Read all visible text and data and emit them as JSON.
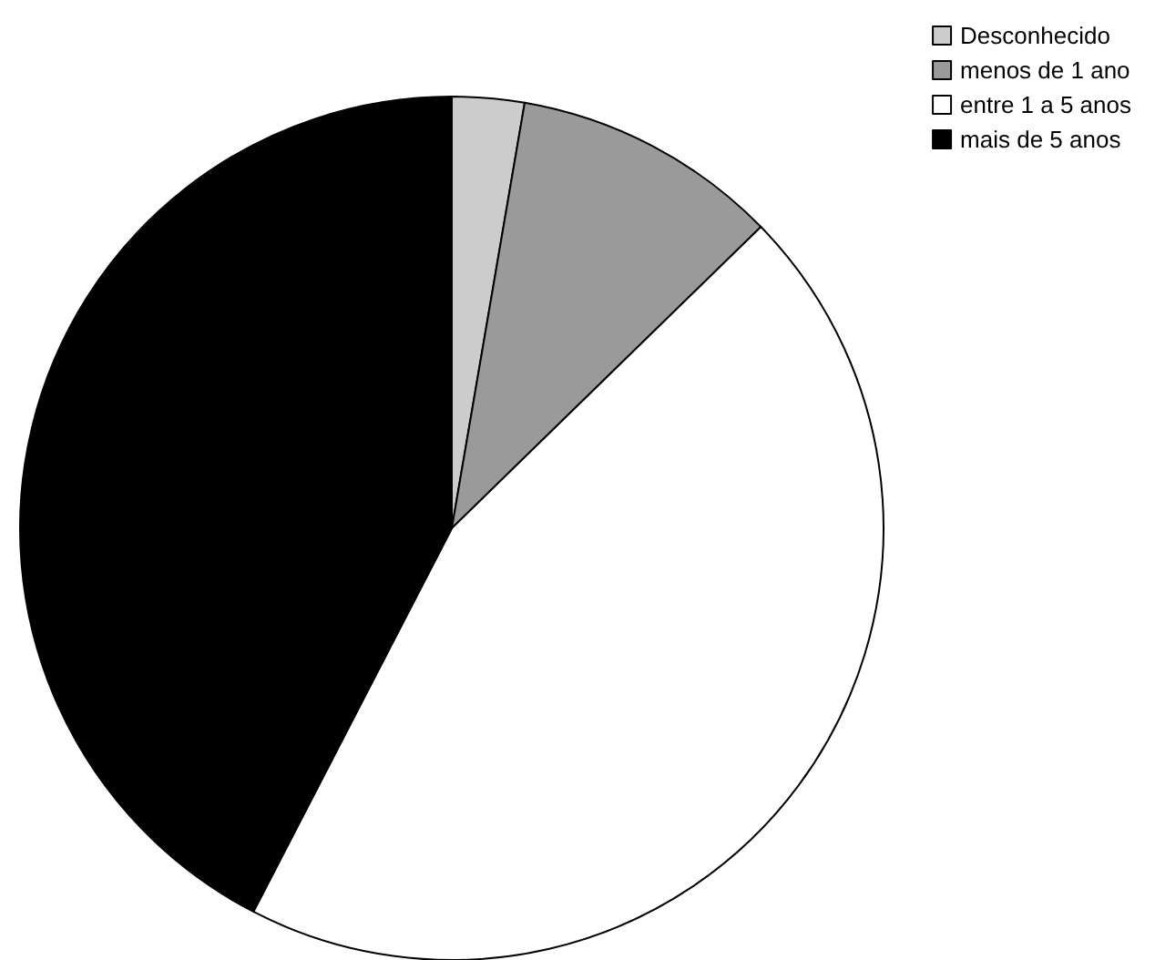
{
  "chart_data": {
    "type": "pie",
    "categories": [
      "Desconhecido",
      "menos de 1 ano",
      "entre 1 a 5 anos",
      "mais de 5 anos"
    ],
    "values": [
      2.7,
      10,
      44.9,
      42.4
    ],
    "colors": [
      "#cccccc",
      "#9a9a9a",
      "#ffffff",
      "#000000"
    ],
    "legend": "top right"
  }
}
